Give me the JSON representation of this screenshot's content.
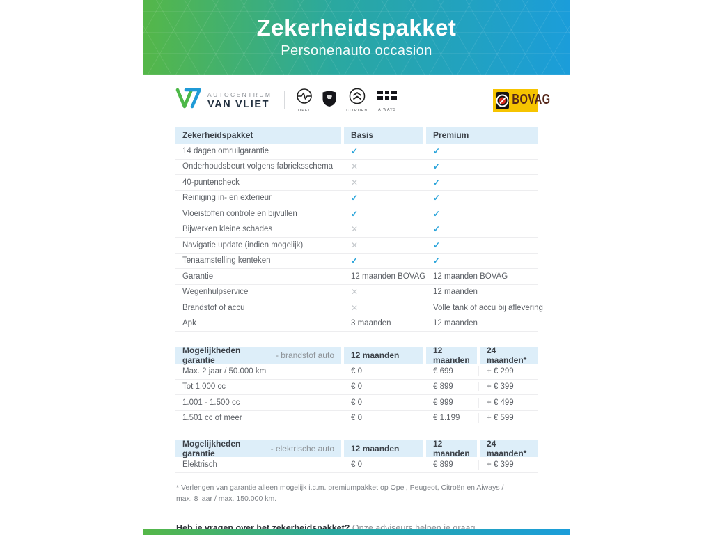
{
  "header": {
    "title": "Zekerheidspakket",
    "subtitle": "Personenauto occasion"
  },
  "branding": {
    "dealer_top": "AUTOCENTRUM",
    "dealer_bottom": "VAN VLIET",
    "brands": [
      {
        "name": "opel",
        "label": "OPEL"
      },
      {
        "name": "peugeot",
        "label": ""
      },
      {
        "name": "citroen",
        "label": "CITROEN"
      },
      {
        "name": "aiways",
        "label": "AIWAYS"
      }
    ],
    "bovag_label": "BOVAG"
  },
  "colors": {
    "accent_green": "#55b748",
    "accent_blue": "#1b9dda",
    "check": "#2aa4da",
    "cross": "#c3c7cb",
    "table_header_bg": "#ddeef9",
    "bovag_yellow": "#f6c400"
  },
  "tables": [
    {
      "columns": [
        "Zekerheidspakket",
        "Basis",
        "Premium"
      ],
      "rows": [
        [
          "14 dagen omruilgarantie",
          "check",
          "check"
        ],
        [
          "Onderhoudsbeurt volgens fabrieksschema",
          "cross",
          "check"
        ],
        [
          "40-puntencheck",
          "cross",
          "check"
        ],
        [
          "Reiniging in- en exterieur",
          "check",
          "check"
        ],
        [
          "Vloeistoffen controle en bijvullen",
          "check",
          "check"
        ],
        [
          "Bijwerken kleine schades",
          "cross",
          "check"
        ],
        [
          "Navigatie update (indien mogelijk)",
          "cross",
          "check"
        ],
        [
          "Tenaamstelling kenteken",
          "check",
          "check"
        ],
        [
          "Garantie",
          "12 maanden BOVAG",
          "12 maanden BOVAG"
        ],
        [
          "Wegenhulpservice",
          "cross",
          "12 maanden"
        ],
        [
          "Brandstof of accu",
          "cross",
          "Volle tank of accu bij aflevering"
        ],
        [
          "Apk",
          "3 maanden",
          "12 maanden"
        ]
      ]
    },
    {
      "title_bold": "Mogelijkheden garantie",
      "title_light": "- brandstof auto",
      "columns": [
        "12 maanden",
        "12 maanden",
        "24 maanden*"
      ],
      "rows": [
        [
          "Max. 2 jaar / 50.000 km",
          "€ 0",
          "€ 699",
          "+ € 299"
        ],
        [
          "Tot 1.000 cc",
          "€ 0",
          "€ 899",
          "+ € 399"
        ],
        [
          "1.001 - 1.500 cc",
          "€ 0",
          "€ 999",
          "+ € 499"
        ],
        [
          "1.501 cc of meer",
          "€ 0",
          "€ 1.199",
          "+ € 599"
        ]
      ]
    },
    {
      "title_bold": "Mogelijkheden garantie",
      "title_light": "- elektrische auto",
      "columns": [
        "12 maanden",
        "12 maanden",
        "24 maanden*"
      ],
      "rows": [
        [
          "Elektrisch",
          "€ 0",
          "€ 899",
          "+ € 399"
        ]
      ]
    }
  ],
  "footnote": "* Verlengen van garantie alleen mogelijk i.c.m. premiumpakket op Opel, Peugeot, Citroën en Aiways / max. 8 jaar / max. 150.000 km.",
  "question": {
    "bold": "Heb je vragen over het zekerheidspakket?",
    "rest": " Onze adviseurs helpen je graag."
  }
}
